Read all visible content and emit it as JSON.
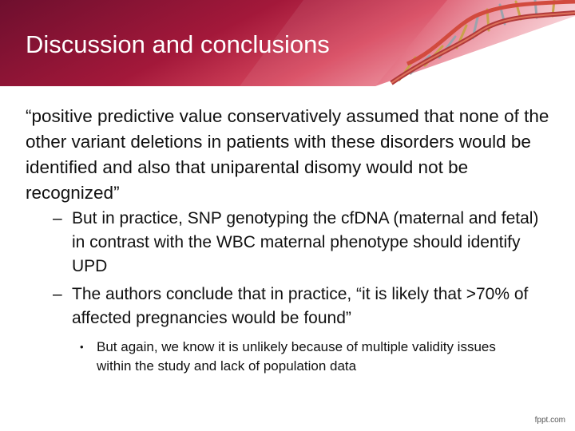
{
  "slide": {
    "title": "Discussion and conclusions",
    "quote": "“positive predictive value conservatively assumed that none of the other variant deletions in patients with these disorders would be identified and also that uniparental disomy would not be recognized”",
    "points": [
      {
        "marker": "–",
        "text": "But in practice, SNP genotyping the cfDNA (maternal and fetal) in contrast with the WBC maternal phenotype should identify UPD"
      },
      {
        "marker": "–",
        "text": "The authors conclude that in practice, “it is likely that >70% of affected pregnancies would be found”"
      }
    ],
    "subpoints": [
      {
        "marker": "•",
        "text": "But again, we know it is unlikely because of multiple validity issues within the study and lack of population data"
      }
    ]
  },
  "footer": {
    "watermark": "fppt.com"
  },
  "colors": {
    "banner_dark": "#6e0f2e",
    "banner_mid": "#b5203f",
    "banner_light": "#e05a6c",
    "text": "#111111"
  },
  "icons": {
    "header_graphic": "dna-helix-icon"
  }
}
